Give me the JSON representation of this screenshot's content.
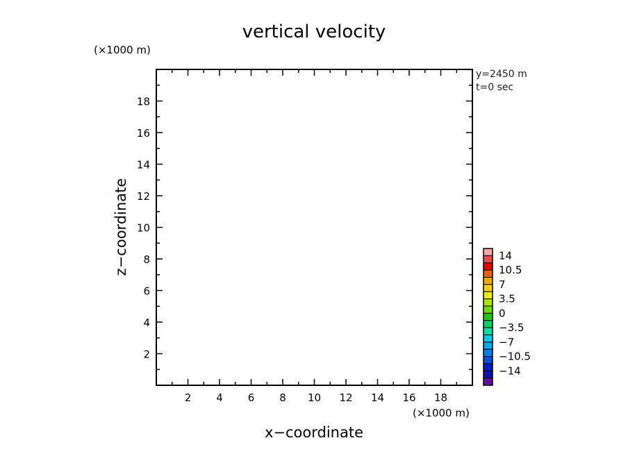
{
  "chart_data": {
    "type": "heatmap",
    "title": "vertical velocity",
    "xlabel": "x−coordinate",
    "ylabel": "z−coordinate",
    "x_unit": "(×1000 m)",
    "y_unit": "(×1000 m)",
    "xlim": [
      0,
      20
    ],
    "ylim": [
      0,
      20
    ],
    "x_ticks": [
      "2",
      "4",
      "6",
      "8",
      "10",
      "12",
      "14",
      "16",
      "18"
    ],
    "y_ticks": [
      "2",
      "4",
      "6",
      "8",
      "10",
      "12",
      "14",
      "16",
      "18"
    ],
    "annotations": [
      "y=2450 m",
      "t=0 sec"
    ],
    "colorbar": {
      "labels": [
        "14",
        "10.5",
        "7",
        "3.5",
        "0",
        "−3.5",
        "−7",
        "−10.5",
        "−14"
      ],
      "colors_top_to_bottom": [
        "#f4a5a5",
        "#ef4b4b",
        "#e60000",
        "#f06000",
        "#f0a800",
        "#f8d000",
        "#e8f000",
        "#a8e800",
        "#6cd800",
        "#20c800",
        "#00d060",
        "#00e0a8",
        "#00c8e8",
        "#00a8f0",
        "#0080f0",
        "#0050e0",
        "#0020d0",
        "#1010b0",
        "#6010a0"
      ]
    },
    "values": []
  }
}
